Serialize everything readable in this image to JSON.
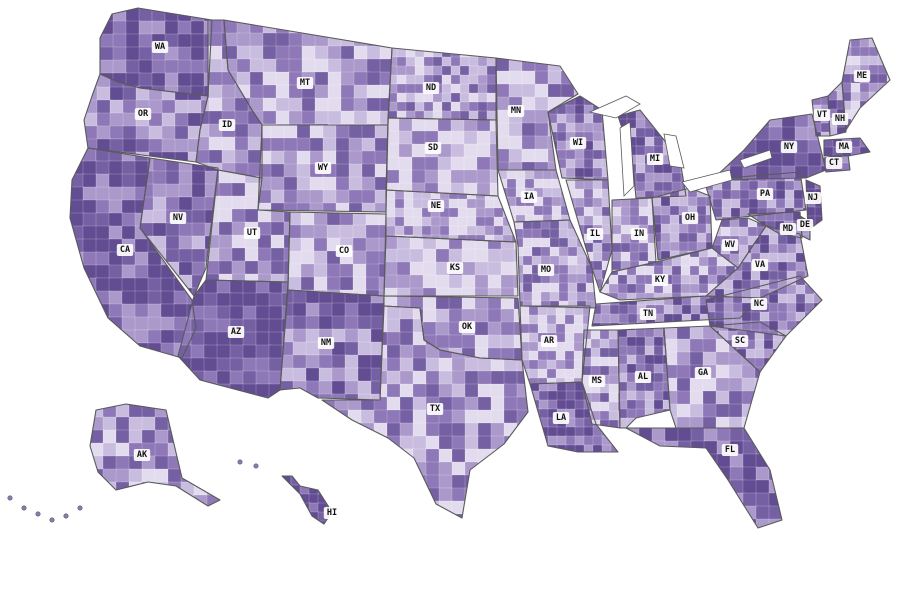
{
  "map": {
    "palette": [
      "#e3dcee",
      "#c9bddf",
      "#ab99cc",
      "#8e78b8",
      "#7560a3",
      "#624c92"
    ],
    "border_color": "#5a5a5a",
    "county_line_color": "#ffffff",
    "states": [
      {
        "abbr": "WA",
        "level": 4
      },
      {
        "abbr": "OR",
        "level": 3
      },
      {
        "abbr": "CA",
        "level": 4
      },
      {
        "abbr": "NV",
        "level": 3
      },
      {
        "abbr": "ID",
        "level": 2
      },
      {
        "abbr": "MT",
        "level": 2
      },
      {
        "abbr": "WY",
        "level": 2
      },
      {
        "abbr": "UT",
        "level": 2
      },
      {
        "abbr": "AZ",
        "level": 5
      },
      {
        "abbr": "CO",
        "level": 2
      },
      {
        "abbr": "NM",
        "level": 3
      },
      {
        "abbr": "ND",
        "level": 2
      },
      {
        "abbr": "SD",
        "level": 1
      },
      {
        "abbr": "NE",
        "level": 1
      },
      {
        "abbr": "KS",
        "level": 1
      },
      {
        "abbr": "OK",
        "level": 2
      },
      {
        "abbr": "TX",
        "level": 2
      },
      {
        "abbr": "MN",
        "level": 2
      },
      {
        "abbr": "IA",
        "level": 1
      },
      {
        "abbr": "MO",
        "level": 2
      },
      {
        "abbr": "AR",
        "level": 1
      },
      {
        "abbr": "LA",
        "level": 4
      },
      {
        "abbr": "WI",
        "level": 3
      },
      {
        "abbr": "IL",
        "level": 2
      },
      {
        "abbr": "MS",
        "level": 2
      },
      {
        "abbr": "MI",
        "level": 3
      },
      {
        "abbr": "IN",
        "level": 2
      },
      {
        "abbr": "OH",
        "level": 3
      },
      {
        "abbr": "KY",
        "level": 2
      },
      {
        "abbr": "TN",
        "level": 3
      },
      {
        "abbr": "AL",
        "level": 3
      },
      {
        "abbr": "GA",
        "level": 2
      },
      {
        "abbr": "FL",
        "level": 4
      },
      {
        "abbr": "SC",
        "level": 3
      },
      {
        "abbr": "NC",
        "level": 3
      },
      {
        "abbr": "VA",
        "level": 3
      },
      {
        "abbr": "WV",
        "level": 2
      },
      {
        "abbr": "PA",
        "level": 3
      },
      {
        "abbr": "NY",
        "level": 4
      },
      {
        "abbr": "NJ",
        "level": 5
      },
      {
        "abbr": "DE",
        "level": 3
      },
      {
        "abbr": "MD",
        "level": 4
      },
      {
        "abbr": "CT",
        "level": 4
      },
      {
        "abbr": "MA",
        "level": 4
      },
      {
        "abbr": "VT",
        "level": 3
      },
      {
        "abbr": "NH",
        "level": 3
      },
      {
        "abbr": "ME",
        "level": 2
      },
      {
        "abbr": "AK",
        "level": 2
      },
      {
        "abbr": "HI",
        "level": 5
      }
    ]
  }
}
